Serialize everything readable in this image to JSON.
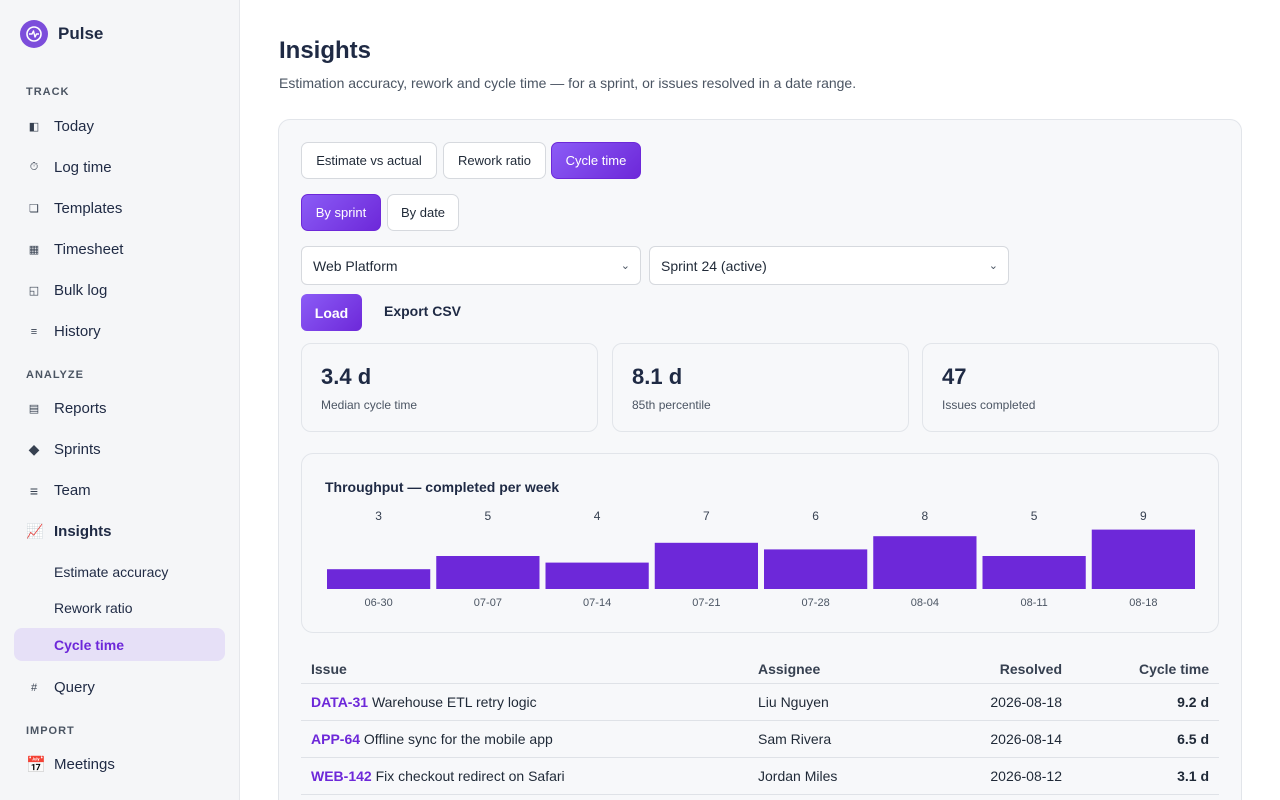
{
  "app": {
    "name": "Pulse"
  },
  "sidebar": {
    "sections": {
      "track": "TRACK",
      "analyze": "ANALYZE",
      "import": "IMPORT"
    },
    "track_items": [
      {
        "label": "Today",
        "icon": "◧"
      },
      {
        "label": "Log time",
        "icon": "⏱"
      },
      {
        "label": "Templates",
        "icon": "❏"
      },
      {
        "label": "Timesheet",
        "icon": "▦"
      },
      {
        "label": "Bulk log",
        "icon": "◱"
      },
      {
        "label": "History",
        "icon": "≡"
      }
    ],
    "analyze_items": [
      {
        "label": "Reports",
        "icon": "▤"
      },
      {
        "label": "Sprints",
        "icon": "◆"
      },
      {
        "label": "Team",
        "icon": "≡"
      },
      {
        "label": "Insights",
        "icon": "📈"
      }
    ],
    "insights_sub": [
      "Estimate accuracy",
      "Rework ratio",
      "Cycle time"
    ],
    "query": {
      "label": "Query",
      "icon": "#"
    },
    "import_items": [
      {
        "label": "Meetings",
        "icon": "📅"
      }
    ]
  },
  "page": {
    "title": "Insights",
    "subtitle": "Estimation accuracy, rework and cycle time — for a sprint, or issues resolved in a date range."
  },
  "tabs": [
    "Estimate vs actual",
    "Rework ratio",
    "Cycle time"
  ],
  "modes": [
    "By sprint",
    "By date"
  ],
  "filters": {
    "project": "Web Platform",
    "sprint": "Sprint 24 (active)"
  },
  "actions": {
    "load": "Load",
    "export": "Export CSV"
  },
  "stats": [
    {
      "value": "3.4 d",
      "label": "Median cycle time"
    },
    {
      "value": "8.1 d",
      "label": "85th percentile"
    },
    {
      "value": "47",
      "label": "Issues completed"
    }
  ],
  "chart_data": {
    "type": "bar",
    "title": "Throughput — completed per week",
    "categories": [
      "06-30",
      "07-07",
      "07-14",
      "07-21",
      "07-28",
      "08-04",
      "08-11",
      "08-18"
    ],
    "values": [
      3,
      5,
      4,
      7,
      6,
      8,
      5,
      9
    ],
    "color": "#6d28d9"
  },
  "table": {
    "headers": {
      "issue": "Issue",
      "assignee": "Assignee",
      "resolved": "Resolved",
      "cycle": "Cycle time"
    },
    "rows": [
      {
        "key": "DATA-31",
        "title": "Warehouse ETL retry logic",
        "assignee": "Liu Nguyen",
        "resolved": "2026-08-18",
        "cycle": "9.2 d"
      },
      {
        "key": "APP-64",
        "title": "Offline sync for the mobile app",
        "assignee": "Sam Rivera",
        "resolved": "2026-08-14",
        "cycle": "6.5 d"
      },
      {
        "key": "WEB-142",
        "title": "Fix checkout redirect on Safari",
        "assignee": "Jordan Miles",
        "resolved": "2026-08-12",
        "cycle": "3.1 d"
      }
    ]
  }
}
